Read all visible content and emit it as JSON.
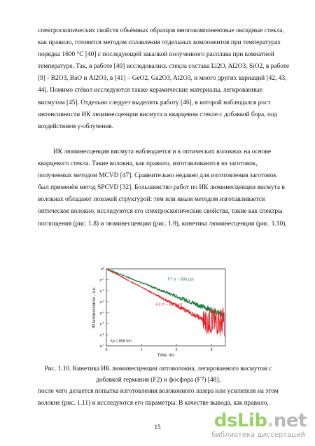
{
  "paragraph1": [
    "спектроскопических свойств объёмных образцов многокомпонентные оксидные стекла,",
    "как правило, готовятся  методом сплавления отдельных компонентов при температурах",
    "порядка 1600 °С [40] с последующей закалкой  полученного расплава при  комнатной",
    "температуре. Так, в работе [40] исследовались стекла состава Li2O, Al2O3, SiO2, в работе",
    "[9] - B2O3, BaO и Al2O3, в [41] – GeO2, Ga2O3, Al2O3, и много других вариаций [42, 43,",
    "44]. Помимо стёкол исследуются также керамические материалы, легированные",
    "висмутом [45]. Отдельно следует выделить работу [46], в которой наблюдался рост",
    "интенсивности ИК люминесценции висмута в кварцевом стекле с добавкой бора, под",
    "воздействием γ-облучения."
  ],
  "paragraph2": [
    "ИК люминесценция висмута наблюдается и в оптических волокнах на основе",
    "кварцевого стекла. Такие волокна, как правило, изготавливаются из заготовок,",
    "полученных методом MCVD [47]. Сравнительно недавно для изготовления заготовок",
    "был применён метод SPCVD [32]. Большинство работ по ИК люминесценции висмута в",
    "волокнах обладают похожей структурой: тем или иным методом изготавливается",
    "оптическое волокно, исследуются его спектроскопические свойства, такие как спектры",
    "поглощения (рис. 1.8) и люминесценции (рис. 1.9), кинетика люминесценции (рис. 1.10),"
  ],
  "caption": [
    "Рис. 1.10. Кинетика ИК люминесценции оптоволокна, легированного висмутом с",
    "добавкой германия (F2) и фосфора (F7)  [48]."
  ],
  "paragraph3": [
    "после чего делается попытка изготовления волоконного лазера или усилителя на этом",
    "волокне (рис. 1.11) и исследуются его параметры. В качестве вывода, как правило,"
  ],
  "page_number": "15",
  "watermark": {
    "main": "dsLib",
    "dot": ".",
    "tld": "net",
    "sub": "библиотека диссертаций"
  },
  "chart_data": {
    "type": "line",
    "xlabel": "Time, ms",
    "ylabel": "IR luminescence , a.u.",
    "xlim": [
      0,
      3.4
    ],
    "ylim_exponent": [
      -7,
      0
    ],
    "log_scale_base": "e",
    "x_ticks": [
      "0",
      "1",
      "2",
      "3"
    ],
    "y_ticks": [
      "e0",
      "e-1",
      "e-2",
      "e-3",
      "e-4",
      "e-5",
      "e-6",
      "e-7"
    ],
    "annotation": "λp = 808 nm",
    "series": [
      {
        "name": "F7 (τ ~ 800 μs)",
        "color": "#1f7a3a",
        "tau_ms": 0.8,
        "noise_floor_exp": -5.5
      },
      {
        "name": "F2 (τ ~ 600 μs)",
        "color": "#e0202a",
        "tau_ms": 0.6,
        "noise_floor_exp": -4.6
      }
    ]
  }
}
